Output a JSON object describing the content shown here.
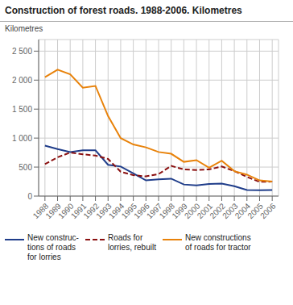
{
  "chart_data": {
    "type": "line",
    "title": "Construction of forest roads. 1988-2006. Kilometres",
    "y_label": "Kilometres",
    "x": [
      1988,
      1989,
      1990,
      1991,
      1992,
      1993,
      1994,
      1995,
      1996,
      1997,
      1998,
      1999,
      2000,
      2001,
      2002,
      2003,
      2004,
      2005,
      2006
    ],
    "series": [
      {
        "name": "New construc-\ntions of roads\nfor lorries",
        "color": "#1f3d8a",
        "line_style": "solid",
        "values": [
          870,
          810,
          760,
          790,
          790,
          540,
          510,
          390,
          270,
          290,
          300,
          200,
          185,
          210,
          215,
          170,
          105,
          100,
          105
        ]
      },
      {
        "name": "Roads for\nlorries, rebuilt",
        "color": "#8b1010",
        "line_style": "dashed",
        "values": [
          550,
          670,
          750,
          720,
          700,
          640,
          420,
          360,
          340,
          380,
          520,
          460,
          450,
          460,
          510,
          430,
          330,
          245,
          250
        ]
      },
      {
        "name": "New constructions\nof roads for tractor",
        "color": "#e8820a",
        "line_style": "solid",
        "values": [
          2050,
          2180,
          2100,
          1870,
          1900,
          1380,
          1000,
          890,
          840,
          760,
          730,
          590,
          620,
          490,
          610,
          430,
          370,
          270,
          250
        ]
      }
    ],
    "xlim": [
      1987.5,
      2006.5
    ],
    "xticks": [
      1988,
      1989,
      1990,
      1991,
      1992,
      1993,
      1994,
      1995,
      1996,
      1997,
      1998,
      1999,
      2000,
      2001,
      2002,
      2003,
      2004,
      2005,
      2006
    ],
    "ylim": [
      0,
      2700
    ],
    "yticks": [
      0,
      500,
      1000,
      {
        "value": 1000,
        "label": "1 000"
      },
      {
        "value": 1500,
        "label": "1 500"
      },
      {
        "value": 2000,
        "label": "2 000"
      },
      {
        "value": 2500,
        "label": "2 500"
      }
    ],
    "grid": true
  }
}
